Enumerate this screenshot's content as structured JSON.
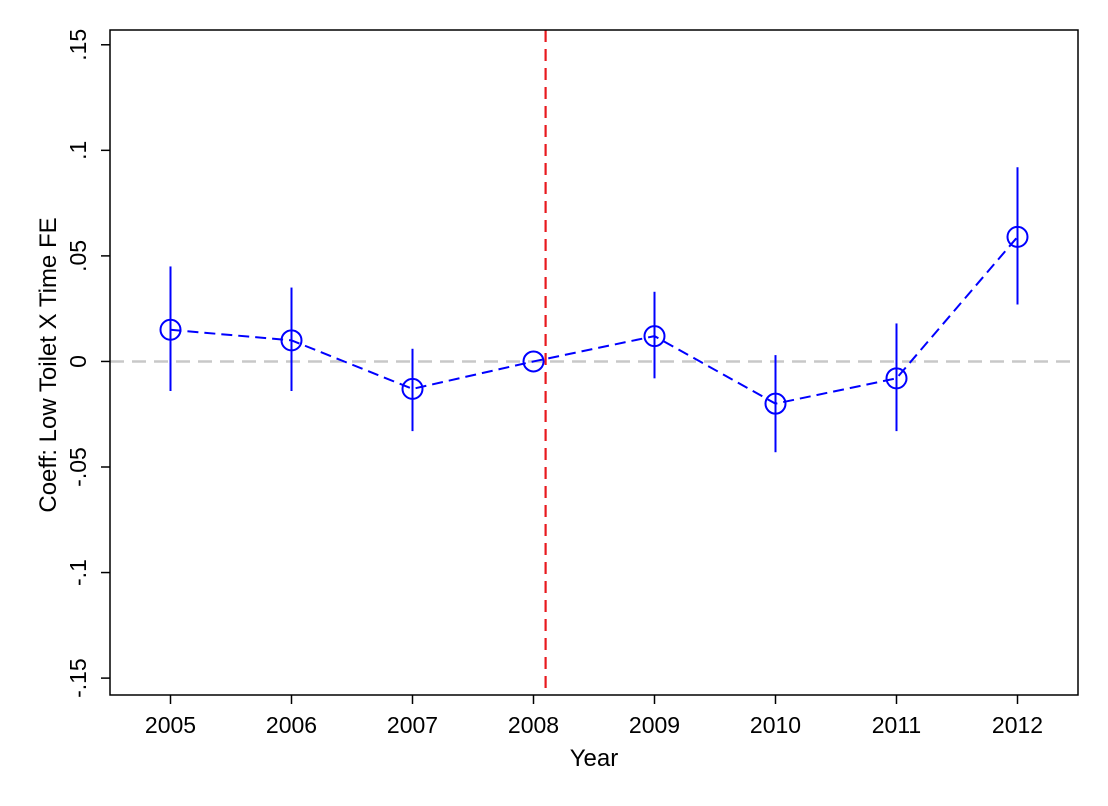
{
  "chart_data": {
    "type": "scatter",
    "title": "",
    "xlabel": "Year",
    "ylabel": "Coeff: Low Toilet X Time FE",
    "x_ticks": [
      "2005",
      "2006",
      "2007",
      "2008",
      "2009",
      "2010",
      "2011",
      "2012"
    ],
    "y_ticks": [
      {
        "value": -0.15,
        "label": "-.15"
      },
      {
        "value": -0.1,
        "label": "-.1"
      },
      {
        "value": -0.05,
        "label": "-.05"
      },
      {
        "value": 0,
        "label": "0"
      },
      {
        "value": 0.05,
        "label": ".05"
      },
      {
        "value": 0.1,
        "label": ".1"
      },
      {
        "value": 0.15,
        "label": ".15"
      }
    ],
    "xlim": [
      2004.5,
      2012.5
    ],
    "ylim": [
      -0.158,
      0.157
    ],
    "grid": false,
    "series": [
      {
        "x": [
          2005,
          2006,
          2007,
          2008,
          2009,
          2010,
          2011,
          2012
        ],
        "y": [
          0.015,
          0.01,
          -0.013,
          0.0,
          0.012,
          -0.02,
          -0.008,
          0.059
        ],
        "ci_low": [
          -0.014,
          -0.014,
          -0.033,
          0.0,
          -0.008,
          -0.043,
          -0.033,
          0.027
        ],
        "ci_high": [
          0.045,
          0.035,
          0.006,
          0.0,
          0.033,
          0.003,
          0.018,
          0.092
        ]
      }
    ],
    "reference_lines": {
      "horizontal_y": 0,
      "vertical_x": 2008.1
    },
    "colors": {
      "series": "#0000ff",
      "zero_line": "#c8c8c8",
      "event_line": "#e8191e",
      "axis": "#000000"
    }
  }
}
